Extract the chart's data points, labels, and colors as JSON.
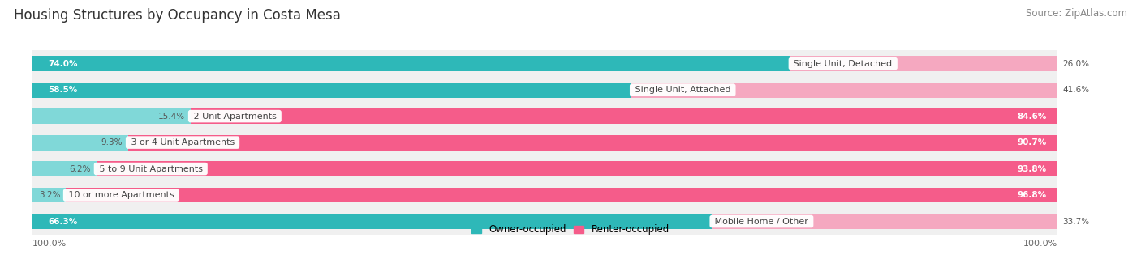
{
  "title": "Housing Structures by Occupancy in Costa Mesa",
  "source": "Source: ZipAtlas.com",
  "categories": [
    "Single Unit, Detached",
    "Single Unit, Attached",
    "2 Unit Apartments",
    "3 or 4 Unit Apartments",
    "5 to 9 Unit Apartments",
    "10 or more Apartments",
    "Mobile Home / Other"
  ],
  "owner_pct": [
    74.0,
    58.5,
    15.4,
    9.3,
    6.2,
    3.2,
    66.3
  ],
  "renter_pct": [
    26.0,
    41.6,
    84.6,
    90.7,
    93.8,
    96.8,
    33.7
  ],
  "owner_color_dark": "#2eb8b8",
  "renter_color_dark": "#f55c8a",
  "owner_color_light": "#80d8d8",
  "renter_color_light": "#f5a8c0",
  "bg_color": "#f0f0f0",
  "bg_color_alt": "#e8e8e8",
  "title_fontsize": 12,
  "source_fontsize": 8.5,
  "bar_height": 0.58,
  "label_fontsize": 8.0,
  "pct_fontsize": 7.5
}
